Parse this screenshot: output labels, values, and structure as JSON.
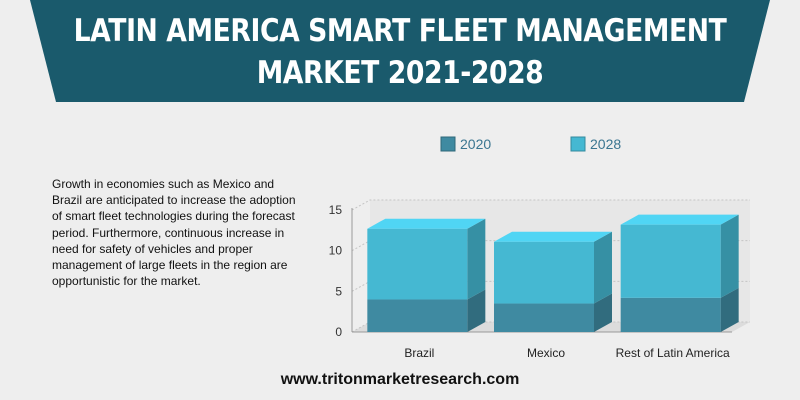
{
  "header": {
    "title_line1": "LATIN AMERICA SMART FLEET MANAGEMENT",
    "title_line2": "MARKET 2021-2028"
  },
  "description": "Growth in economies such as Mexico and Brazil are anticipated to increase the adoption of smart fleet technologies during the forecast period. Furthermore, continuous increase in need for safety of vehicles and proper management of large fleets in the region are opportunistic for the market.",
  "footer": {
    "url": "www.tritonmarketresearch.com"
  },
  "colors": {
    "banner": "#1a5a6c",
    "series_2020": "#3f8aa1",
    "series_2028": "#45b8d2"
  },
  "chart_data": {
    "type": "bar",
    "stacked": true,
    "three_d": true,
    "categories": [
      "Brazil",
      "Mexico",
      "Rest of Latin America"
    ],
    "series": [
      {
        "name": "2020",
        "values": [
          4.0,
          3.5,
          4.2
        ]
      },
      {
        "name": "2028",
        "values": [
          8.7,
          7.6,
          9.0
        ]
      }
    ],
    "yticks": [
      "0",
      "5",
      "10",
      "15"
    ],
    "ylim": [
      0,
      15
    ],
    "grid": true,
    "legend_position": "top"
  }
}
